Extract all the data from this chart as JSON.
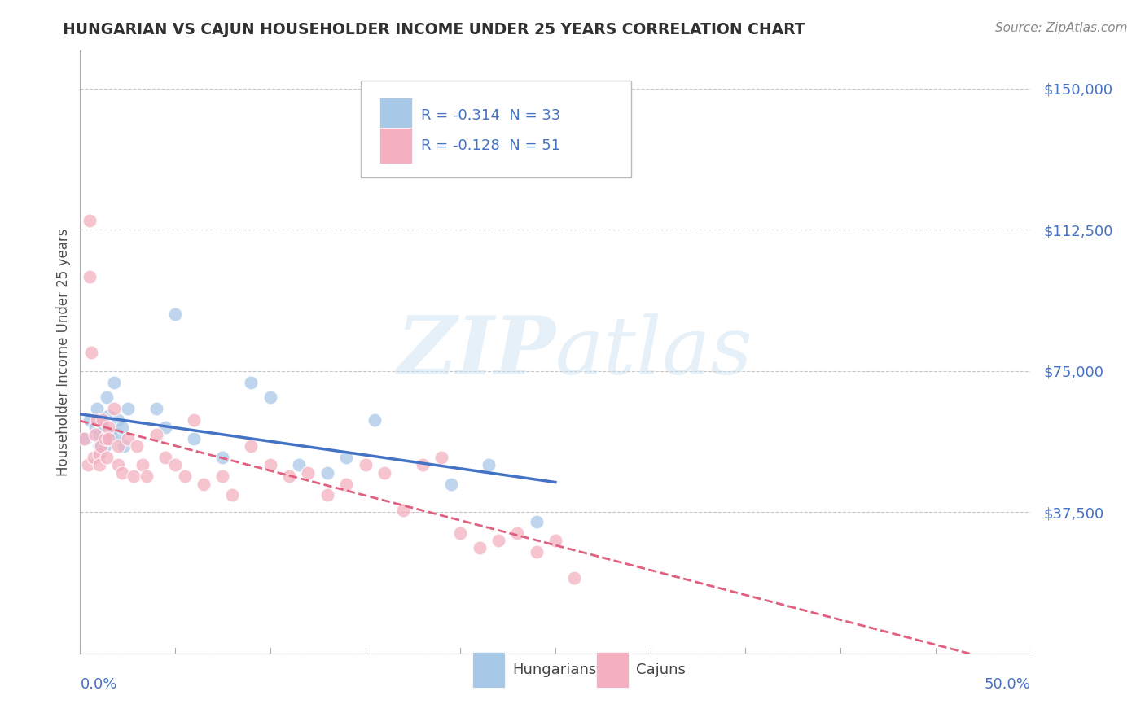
{
  "title": "HUNGARIAN VS CAJUN HOUSEHOLDER INCOME UNDER 25 YEARS CORRELATION CHART",
  "source": "Source: ZipAtlas.com",
  "ylabel": "Householder Income Under 25 years",
  "y_ticks": [
    0,
    37500,
    75000,
    112500,
    150000
  ],
  "y_tick_labels": [
    "",
    "$37,500",
    "$75,000",
    "$112,500",
    "$150,000"
  ],
  "x_range": [
    0.0,
    50.0
  ],
  "y_range": [
    0,
    160000
  ],
  "watermark_zip": "ZIP",
  "watermark_atlas": "atlas",
  "legend_entries": [
    {
      "label": "R = -0.314  N = 33",
      "color": "#a8c8e8"
    },
    {
      "label": "R = -0.128  N = 51",
      "color": "#f4b0c0"
    }
  ],
  "hungarian_color": "#a8c8e8",
  "cajun_color": "#f4b0c0",
  "trend_hungarian_color": "#4472c4",
  "trend_cajun_color": "#e06080",
  "background_color": "#ffffff",
  "grid_color": "#c8c8c8",
  "axis_label_color": "#4472c4",
  "title_color": "#303030",
  "source_color": "#888888",
  "ylabel_color": "#505050",
  "bottom_legend": [
    {
      "label": "Hungarians",
      "color": "#a8c8e8"
    },
    {
      "label": "Cajuns",
      "color": "#f4b0c0"
    }
  ],
  "hungarian_x": [
    0.3,
    0.5,
    0.8,
    0.9,
    1.0,
    1.0,
    1.1,
    1.2,
    1.3,
    1.4,
    1.5,
    1.5,
    1.6,
    1.8,
    2.0,
    2.0,
    2.2,
    2.3,
    2.5,
    4.0,
    4.5,
    5.0,
    6.0,
    7.5,
    9.0,
    10.0,
    11.5,
    13.0,
    14.0,
    15.5,
    19.5,
    21.5,
    24.0
  ],
  "hungarian_y": [
    57000,
    62000,
    60000,
    65000,
    58000,
    55000,
    62000,
    60000,
    55000,
    68000,
    63000,
    57000,
    58000,
    72000,
    62000,
    58000,
    60000,
    55000,
    65000,
    65000,
    60000,
    90000,
    57000,
    52000,
    72000,
    68000,
    50000,
    48000,
    52000,
    62000,
    45000,
    50000,
    35000
  ],
  "cajun_x": [
    0.2,
    0.4,
    0.5,
    0.5,
    0.6,
    0.7,
    0.8,
    0.9,
    1.0,
    1.0,
    1.1,
    1.2,
    1.3,
    1.4,
    1.5,
    1.5,
    1.8,
    2.0,
    2.0,
    2.2,
    2.5,
    2.8,
    3.0,
    3.3,
    3.5,
    4.0,
    4.5,
    5.0,
    5.5,
    6.0,
    6.5,
    7.5,
    8.0,
    9.0,
    10.0,
    11.0,
    12.0,
    13.0,
    14.0,
    15.0,
    16.0,
    17.0,
    18.0,
    19.0,
    20.0,
    21.0,
    22.0,
    23.0,
    24.0,
    25.0,
    26.0
  ],
  "cajun_y": [
    57000,
    50000,
    115000,
    100000,
    80000,
    52000,
    58000,
    62000,
    53000,
    50000,
    55000,
    62000,
    57000,
    52000,
    60000,
    57000,
    65000,
    50000,
    55000,
    48000,
    57000,
    47000,
    55000,
    50000,
    47000,
    58000,
    52000,
    50000,
    47000,
    62000,
    45000,
    47000,
    42000,
    55000,
    50000,
    47000,
    48000,
    42000,
    45000,
    50000,
    48000,
    38000,
    50000,
    52000,
    32000,
    28000,
    30000,
    32000,
    27000,
    30000,
    20000
  ]
}
